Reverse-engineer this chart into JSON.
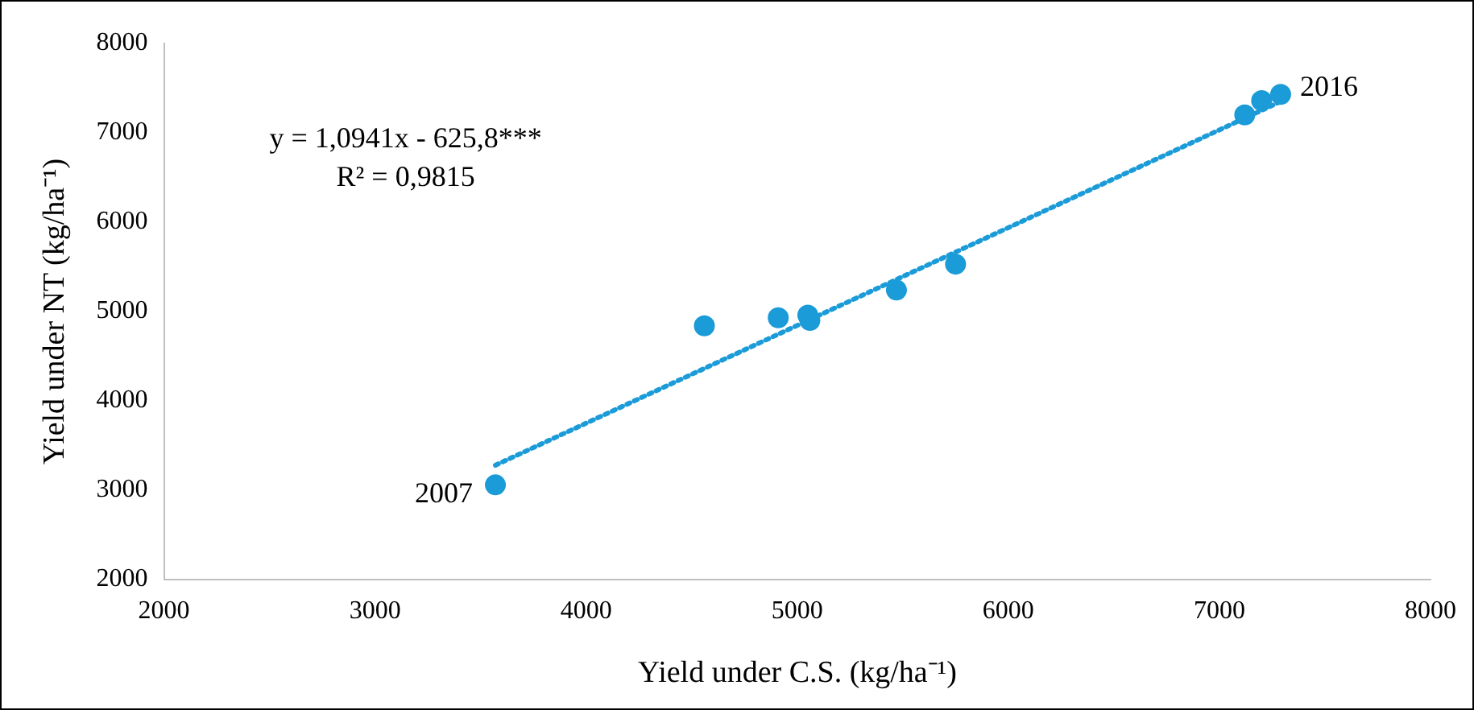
{
  "chart_data": {
    "type": "scatter",
    "xlabel": "Yield under C.S. (kg/ha⁻¹)",
    "ylabel": "Yield under NT (kg/ha⁻¹)",
    "x": [
      3570,
      4560,
      4910,
      5050,
      5060,
      5470,
      5750,
      7120,
      7200,
      7290
    ],
    "series": [
      {
        "color": "#1b9bd7",
        "values": [
          3060,
          4840,
          4930,
          4960,
          4900,
          5240,
          5530,
          7200,
          7360,
          7430
        ]
      },
      {
        "type": "line",
        "color": "#1b9bd7",
        "x": [
          3570,
          7290
        ],
        "values": [
          3280,
          7350
        ],
        "line_style": "dotted",
        "marker": "none"
      }
    ],
    "xlim": [
      2000,
      8000
    ],
    "xticks": [
      2000,
      3000,
      4000,
      5000,
      6000,
      7000,
      8000
    ],
    "ylim": [
      2000,
      8000
    ],
    "yticks": [
      2000,
      3000,
      4000,
      5000,
      6000,
      7000,
      8000
    ],
    "grid": false,
    "legend": false,
    "marker": "circle",
    "annotations": [
      "y = 1,0941x - 625,8***",
      "R² = 0,9815",
      {
        "text": "2007",
        "x": 3570,
        "y": 3060
      },
      {
        "text": "2016",
        "x": 7290,
        "y": 7430
      }
    ]
  }
}
